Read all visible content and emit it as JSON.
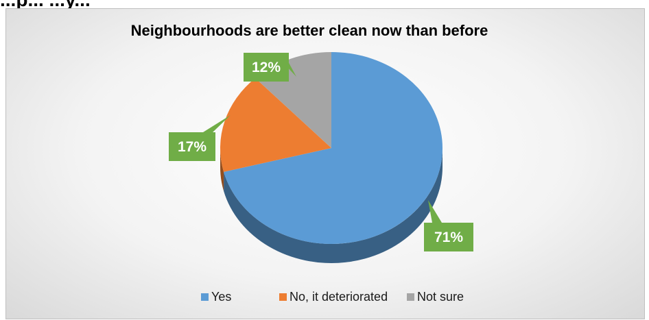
{
  "page": {
    "heading_fragment": "...p... ...y..."
  },
  "chart_data": {
    "type": "pie",
    "title": "Neighbourhoods are better clean now than before",
    "categories": [
      "Yes",
      "No, it  deteriorated",
      "Not sure"
    ],
    "values": [
      71,
      17,
      12
    ],
    "data_labels": [
      "71%",
      "17%",
      "12%"
    ],
    "legend_position": "bottom",
    "colors": [
      "#5b9bd5",
      "#ed7d31",
      "#a5a5a5"
    ],
    "label_color": "#70ad47"
  }
}
